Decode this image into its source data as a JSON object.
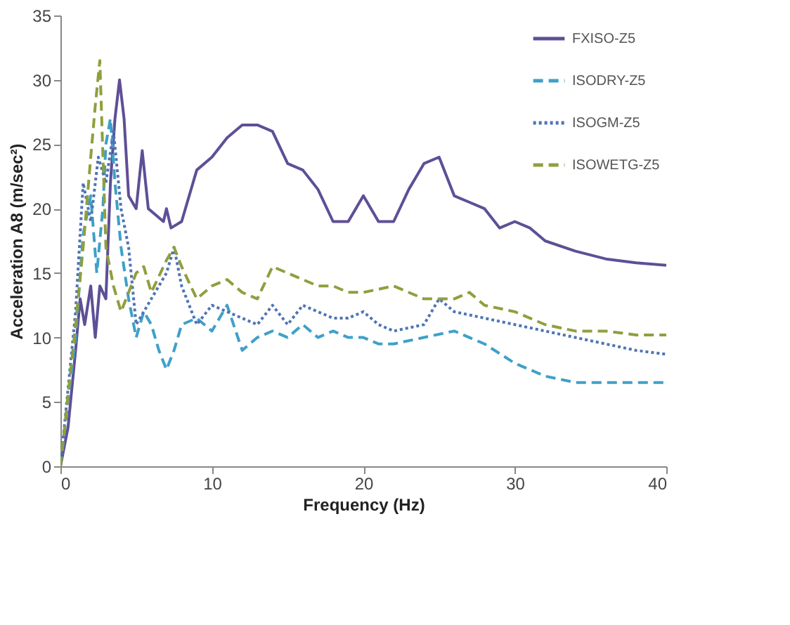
{
  "chart_data": {
    "type": "line",
    "xlabel": "Frequency (Hz)",
    "ylabel": "Acceleration A8 (m/sec²)",
    "xlim": [
      0,
      40
    ],
    "xticks": [
      0,
      10,
      20,
      30,
      40
    ],
    "ylim": [
      0,
      35
    ],
    "yticks": [
      0,
      5,
      10,
      15,
      20,
      25,
      30,
      35
    ],
    "grid": false,
    "legend": "top right",
    "marker": "none",
    "series": [
      {
        "name": "FXISO-Z5",
        "color": "#5e4f96",
        "line_style": "solid",
        "x": [
          0,
          0.5,
          1,
          1.3,
          1.6,
          2,
          2.3,
          2.6,
          3,
          3.3,
          3.6,
          3.9,
          4.2,
          4.5,
          5,
          5.4,
          5.8,
          6.3,
          6.8,
          7,
          7.3,
          8,
          9,
          10,
          11,
          12,
          13,
          14,
          15,
          16,
          17,
          18,
          19,
          20,
          21,
          22,
          23,
          24,
          25,
          26,
          27,
          28,
          29,
          30,
          31,
          32,
          34,
          36,
          38,
          40
        ],
        "values": [
          0,
          3,
          9,
          13,
          11,
          14,
          10,
          14,
          13,
          22,
          27,
          30,
          27,
          21,
          20,
          24.5,
          20,
          19.5,
          19,
          20,
          18.5,
          19,
          23,
          24,
          25.5,
          26.5,
          26.5,
          26,
          23.5,
          23,
          21.5,
          19,
          19,
          21,
          19,
          19,
          21.5,
          23.5,
          24,
          21,
          20.5,
          20,
          18.5,
          19,
          18.5,
          17.5,
          16.7,
          16.1,
          15.8,
          15.6
        ]
      },
      {
        "name": "ISODRY-Z5",
        "color": "#3fa0c8",
        "line_style": "dashed",
        "x": [
          0,
          1,
          1.5,
          2,
          2.4,
          2.8,
          3,
          3.3,
          3.6,
          4,
          4.5,
          5,
          5.5,
          6,
          6.5,
          7,
          7.5,
          8,
          9,
          10,
          11,
          12,
          13,
          14,
          15,
          16,
          17,
          18,
          19,
          20,
          21,
          22,
          24,
          26,
          28,
          30,
          32,
          34,
          36,
          38,
          40
        ],
        "values": [
          0,
          10,
          18,
          21,
          15,
          20,
          25,
          27,
          22,
          17,
          13,
          10,
          12,
          11,
          9,
          7.5,
          9,
          11,
          11.5,
          10.5,
          12.5,
          9,
          10,
          10.5,
          10,
          11,
          10,
          10.5,
          10,
          10,
          9.5,
          9.5,
          10,
          10.5,
          9.5,
          8,
          7,
          6.5,
          6.5,
          6.5,
          6.5
        ]
      },
      {
        "name": "ISOGM-Z5",
        "color": "#4f74b4",
        "line_style": "dotted",
        "x": [
          0,
          1,
          1.5,
          2,
          2.5,
          3,
          3.5,
          4,
          4.5,
          5,
          5.5,
          6,
          7,
          7.5,
          8,
          9,
          10,
          11,
          12,
          13,
          14,
          15,
          16,
          17,
          18,
          19,
          20,
          21,
          22,
          24,
          25,
          26,
          28,
          30,
          32,
          34,
          36,
          38,
          40
        ],
        "values": [
          0,
          12,
          22,
          19,
          24,
          22,
          26,
          20,
          17,
          11,
          12,
          13,
          15,
          17,
          14,
          11,
          12.5,
          12,
          11.5,
          11,
          12.5,
          11,
          12.5,
          12,
          11.5,
          11.5,
          12,
          11,
          10.5,
          11,
          13,
          12,
          11.5,
          11,
          10.5,
          10,
          9.5,
          9,
          8.7
        ]
      },
      {
        "name": "ISOWETG-Z5",
        "color": "#8f9f3e",
        "line_style": "dashed",
        "x": [
          0,
          1,
          1.5,
          2,
          2.3,
          2.6,
          3,
          3.5,
          4,
          5,
          5.5,
          6,
          7,
          7.5,
          8,
          9,
          10,
          11,
          12,
          13,
          14,
          15,
          16,
          17,
          18,
          19,
          20,
          22,
          24,
          26,
          27,
          28,
          30,
          32,
          34,
          36,
          38,
          40
        ],
        "values": [
          0,
          11,
          17,
          24,
          28,
          31.5,
          17,
          14,
          12,
          15,
          15.5,
          13.5,
          16,
          17,
          15.5,
          13,
          14,
          14.5,
          13.5,
          13,
          15.5,
          15,
          14.5,
          14,
          14,
          13.5,
          13.5,
          14,
          13,
          13,
          13.5,
          12.5,
          12,
          11,
          10.5,
          10.5,
          10.2,
          10.2
        ]
      }
    ]
  }
}
